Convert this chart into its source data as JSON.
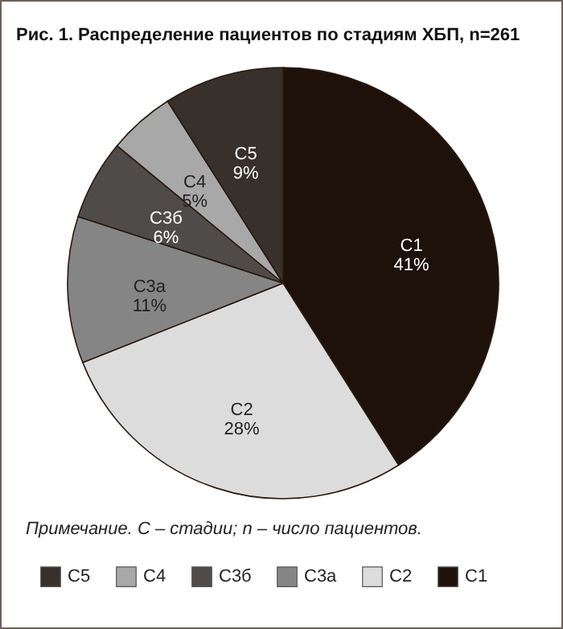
{
  "chart_data": {
    "type": "pie",
    "title": "Рис. 1. Распределение пациентов по стадиям ХБП, n=261",
    "categories": [
      "С1",
      "С2",
      "С3а",
      "С3б",
      "С4",
      "С5"
    ],
    "values": [
      41,
      28,
      11,
      6,
      5,
      9
    ],
    "value_labels": [
      "41%",
      "28%",
      "11%",
      "6%",
      "5%",
      "9%"
    ],
    "colors": [
      "#1e1109",
      "#dcdcdc",
      "#858585",
      "#4f4b48",
      "#a8a8a8",
      "#37302b"
    ],
    "annotations": [
      "Примечание. С – стадии; n – число пациентов."
    ],
    "legend": "bottom"
  }
}
